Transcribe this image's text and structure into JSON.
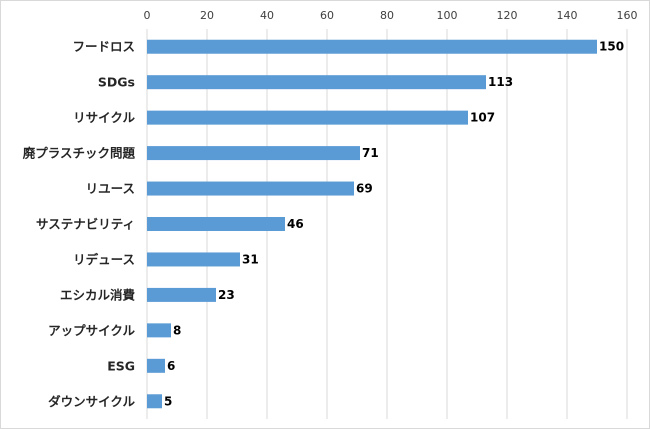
{
  "chart_data": {
    "type": "bar",
    "orientation": "horizontal",
    "categories": [
      "フードロス",
      "SDGs",
      "リサイクル",
      "廃プラスチック問題",
      "リユース",
      "サステナビリティ",
      "リデュース",
      "エシカル消費",
      "アップサイクル",
      "ESG",
      "ダウンサイクル"
    ],
    "values": [
      150,
      113,
      107,
      71,
      69,
      46,
      31,
      23,
      8,
      6,
      5
    ],
    "x_ticks": [
      0,
      20,
      40,
      60,
      80,
      100,
      120,
      140,
      160
    ],
    "xlim": [
      0,
      160
    ],
    "x_axis_position": "top",
    "grid": true,
    "legend": "none",
    "bar_color": "#5b9bd5",
    "data_labels": true
  }
}
